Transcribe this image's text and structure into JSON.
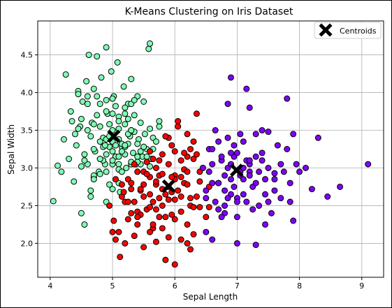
{
  "chart_data": {
    "type": "scatter",
    "title": "K-Means Clustering on Iris Dataset",
    "xlabel": "Sepal Length",
    "ylabel": "Sepal Width",
    "xlim": [
      3.8,
      9.35
    ],
    "ylim": [
      1.55,
      4.95
    ],
    "x_ticks": [
      4,
      5,
      6,
      7,
      8,
      9
    ],
    "x_tick_labels": [
      "4",
      "5",
      "6",
      "7",
      "8",
      "9"
    ],
    "y_ticks": [
      2.0,
      2.5,
      3.0,
      3.5,
      4.0,
      4.5
    ],
    "y_tick_labels": [
      "2.0",
      "2.5",
      "3.0",
      "3.5",
      "4.0",
      "4.5"
    ],
    "grid": true,
    "legend": {
      "position": "top-right",
      "entries": [
        "Centroids"
      ]
    },
    "series": [
      {
        "color": "#7fffb4",
        "x": [
          4.05,
          4.12,
          4.18,
          4.22,
          4.25,
          4.3,
          4.33,
          4.38,
          4.42,
          4.45,
          4.48,
          4.5,
          4.52,
          4.55,
          4.58,
          4.6,
          4.62,
          4.65,
          4.67,
          4.7,
          4.72,
          4.75,
          4.78,
          4.8,
          4.82,
          4.85,
          4.88,
          4.9,
          4.92,
          4.95,
          4.98,
          5.0,
          5.02,
          5.05,
          5.08,
          5.1,
          5.12,
          5.15,
          5.18,
          5.2,
          5.22,
          5.25,
          5.28,
          5.3,
          5.33,
          5.35,
          5.38,
          5.4,
          5.42,
          5.45,
          5.48,
          5.5,
          5.52,
          5.55,
          5.58,
          5.6,
          5.62,
          5.65,
          5.7,
          5.75,
          4.4,
          4.5,
          4.6,
          4.7,
          4.8,
          4.9,
          5.0,
          5.1,
          5.2,
          5.3,
          4.55,
          4.65,
          4.75,
          4.85,
          4.95,
          5.05,
          5.15,
          5.25,
          5.35,
          5.45,
          4.6,
          4.7,
          4.8,
          4.9,
          5.0,
          5.1,
          5.2,
          5.3,
          4.7,
          4.8,
          4.9,
          5.0,
          5.1,
          5.2,
          4.9,
          5.0,
          5.1,
          5.3,
          4.35,
          4.45,
          4.6,
          4.75,
          4.9,
          5.05,
          5.2,
          5.35,
          5.5,
          5.65,
          4.5,
          4.7,
          4.85,
          5.0,
          5.15,
          5.3,
          5.45,
          5.6,
          4.45,
          4.55,
          4.7,
          4.8,
          4.95,
          5.1,
          5.25,
          5.4,
          5.55,
          4.65,
          4.8,
          4.95,
          5.1,
          5.25,
          5.4,
          5.0,
          5.15,
          4.88,
          5.0,
          5.1,
          5.2,
          5.3,
          5.4,
          5.5,
          5.75,
          4.9,
          5.6
        ],
        "y": [
          2.56,
          3.03,
          2.95,
          3.38,
          4.24,
          3.12,
          3.75,
          2.82,
          3.3,
          4.02,
          3.55,
          2.4,
          3.88,
          2.25,
          4.15,
          3.05,
          4.5,
          2.7,
          3.6,
          4.05,
          3.22,
          4.48,
          2.95,
          3.85,
          4.2,
          3.4,
          3.05,
          4.6,
          3.72,
          2.78,
          4.28,
          3.5,
          3.95,
          3.15,
          4.4,
          3.68,
          2.68,
          3.28,
          4.08,
          3.58,
          3.0,
          3.85,
          3.42,
          4.18,
          3.2,
          3.7,
          3.05,
          3.95,
          3.38,
          3.6,
          3.15,
          3.88,
          3.45,
          3.25,
          4.58,
          3.52,
          3.12,
          3.4,
          3.35,
          3.55,
          3.45,
          3.65,
          3.85,
          3.25,
          3.55,
          3.75,
          3.35,
          3.62,
          3.18,
          3.5,
          3.1,
          3.42,
          3.7,
          3.28,
          3.58,
          3.82,
          3.32,
          3.65,
          3.48,
          3.22,
          3.95,
          3.58,
          3.12,
          3.38,
          3.92,
          3.05,
          3.72,
          3.85,
          2.88,
          3.35,
          3.18,
          3.72,
          3.15,
          3.28,
          2.95,
          3.05,
          2.98,
          3.05,
          3.62,
          3.98,
          3.5,
          3.95,
          3.9,
          3.3,
          3.8,
          3.9,
          3.28,
          3.25,
          3.02,
          2.9,
          3.1,
          2.72,
          3.22,
          3.08,
          3.05,
          3.02,
          3.52,
          3.18,
          2.85,
          3.12,
          3.42,
          3.52,
          3.32,
          3.08,
          3.15,
          2.62,
          2.92,
          3.28,
          2.8,
          3.45,
          3.15,
          3.1,
          2.95,
          3.3,
          3.22,
          3.38,
          3.3,
          3.5,
          3.32,
          3.28,
          3.62,
          2.55,
          4.65
        ]
      },
      {
        "color": "#ff0000",
        "x": [
          4.95,
          5.02,
          5.1,
          5.15,
          5.2,
          5.25,
          5.3,
          5.35,
          5.4,
          5.45,
          5.5,
          5.55,
          5.6,
          5.65,
          5.7,
          5.75,
          5.8,
          5.85,
          5.9,
          5.95,
          6.0,
          6.05,
          6.1,
          6.15,
          6.2,
          6.25,
          6.3,
          6.35,
          6.4,
          6.45,
          5.2,
          5.3,
          5.4,
          5.5,
          5.6,
          5.7,
          5.8,
          5.9,
          6.0,
          6.1,
          6.2,
          6.3,
          6.4,
          5.25,
          5.35,
          5.45,
          5.55,
          5.65,
          5.75,
          5.85,
          5.95,
          6.05,
          6.15,
          6.25,
          6.35,
          5.3,
          5.4,
          5.5,
          5.6,
          5.7,
          5.8,
          5.9,
          6.0,
          6.1,
          6.2,
          6.3,
          5.45,
          5.55,
          5.65,
          5.75,
          5.85,
          5.95,
          6.05,
          6.15,
          6.25,
          5.6,
          5.7,
          5.8,
          5.9,
          6.0,
          6.1,
          6.2,
          5.05,
          5.12,
          5.18,
          5.5,
          5.7,
          5.9,
          6.1,
          6.3,
          6.5,
          5.25,
          5.4,
          5.6,
          5.8,
          6.0,
          6.2,
          6.4,
          6.55,
          5.35,
          5.65,
          5.95,
          6.25,
          5.05,
          5.15,
          5.85,
          6.55,
          6.0,
          6.2,
          5.0,
          5.75,
          6.35
        ],
        "y": [
          2.5,
          2.3,
          2.15,
          2.62,
          2.0,
          2.85,
          2.4,
          3.05,
          2.25,
          2.7,
          2.95,
          2.45,
          3.22,
          2.2,
          2.78,
          3.1,
          2.5,
          2.35,
          3.4,
          2.68,
          2.9,
          3.62,
          2.42,
          2.8,
          3.15,
          2.5,
          3.35,
          2.62,
          2.95,
          3.0,
          2.55,
          2.8,
          2.42,
          2.62,
          2.88,
          2.45,
          2.72,
          2.58,
          2.85,
          2.62,
          2.78,
          2.48,
          2.82,
          2.32,
          2.55,
          2.38,
          2.92,
          2.55,
          2.9,
          2.65,
          2.88,
          2.7,
          2.98,
          2.6,
          3.18,
          2.72,
          2.95,
          2.78,
          2.48,
          3.0,
          3.18,
          3.05,
          3.22,
          3.1,
          3.45,
          3.12,
          2.72,
          3.08,
          3.12,
          2.6,
          3.42,
          3.3,
          3.55,
          3.2,
          3.25,
          2.65,
          2.82,
          2.92,
          2.75,
          2.58,
          2.88,
          2.95,
          2.05,
          1.82,
          2.68,
          1.95,
          2.02,
          2.08,
          2.05,
          2.12,
          2.35,
          2.55,
          2.35,
          2.15,
          2.2,
          2.32,
          2.25,
          2.48,
          2.75,
          2.1,
          2.25,
          2.38,
          1.92,
          2.85,
          2.78,
          1.78,
          2.48,
          1.72,
          2.0,
          2.15,
          2.35,
          3.72
        ],
        "label_free": true
      },
      {
        "color": "#7f00ff",
        "x": [
          6.45,
          6.5,
          6.55,
          6.6,
          6.65,
          6.7,
          6.75,
          6.8,
          6.85,
          6.9,
          6.95,
          7.0,
          7.05,
          7.1,
          7.15,
          7.2,
          7.25,
          7.3,
          7.35,
          7.4,
          7.45,
          7.5,
          7.55,
          7.6,
          7.65,
          7.7,
          7.75,
          7.8,
          7.85,
          7.9,
          6.5,
          6.6,
          6.7,
          6.8,
          6.9,
          7.0,
          7.1,
          7.2,
          7.3,
          7.4,
          7.5,
          7.6,
          6.55,
          6.65,
          6.75,
          6.85,
          6.95,
          7.05,
          7.15,
          7.25,
          7.35,
          7.45,
          6.6,
          6.7,
          6.8,
          6.9,
          7.0,
          7.1,
          7.2,
          7.3,
          6.7,
          6.8,
          6.9,
          7.0,
          7.1,
          7.2,
          6.75,
          6.85,
          6.95,
          7.05,
          7.8,
          7.95,
          8.0,
          8.1,
          8.2,
          8.3,
          8.45,
          8.65,
          9.1,
          7.6,
          7.7,
          7.5,
          7.4,
          7.9,
          6.9,
          7.2,
          7.85,
          6.6,
          7.0,
          7.3,
          6.85,
          7.15,
          6.5,
          7.45
        ],
        "y": [
          3.0,
          2.6,
          3.25,
          2.8,
          3.5,
          2.45,
          3.1,
          2.9,
          3.4,
          2.65,
          3.15,
          2.35,
          2.95,
          3.35,
          2.55,
          3.05,
          2.75,
          3.45,
          2.5,
          3.2,
          2.85,
          3.0,
          2.4,
          2.7,
          3.3,
          2.6,
          2.95,
          3.25,
          2.55,
          2.3,
          2.7,
          3.05,
          3.35,
          2.5,
          2.85,
          3.2,
          2.65,
          2.95,
          2.8,
          3.1,
          2.55,
          2.85,
          2.95,
          2.55,
          3.15,
          3.0,
          2.75,
          2.9,
          3.1,
          2.45,
          2.95,
          2.65,
          3.25,
          2.8,
          2.4,
          3.2,
          2.6,
          3.0,
          2.9,
          3.15,
          2.8,
          2.7,
          3.05,
          2.55,
          2.85,
          3.1,
          2.35,
          2.6,
          3.3,
          3.45,
          3.92,
          3.05,
          2.95,
          3.0,
          2.72,
          3.4,
          2.62,
          2.75,
          3.05,
          2.93,
          3.05,
          3.48,
          3.5,
          3.45,
          4.2,
          3.8,
          2.8,
          2.05,
          2.0,
          1.98,
          3.85,
          4.05,
          2.15,
          2.25
        ]
      }
    ],
    "centroids": {
      "x": [
        5.02,
        5.9,
        6.99
      ],
      "y": [
        3.42,
        2.76,
        2.97
      ],
      "name": "Centroids"
    }
  }
}
